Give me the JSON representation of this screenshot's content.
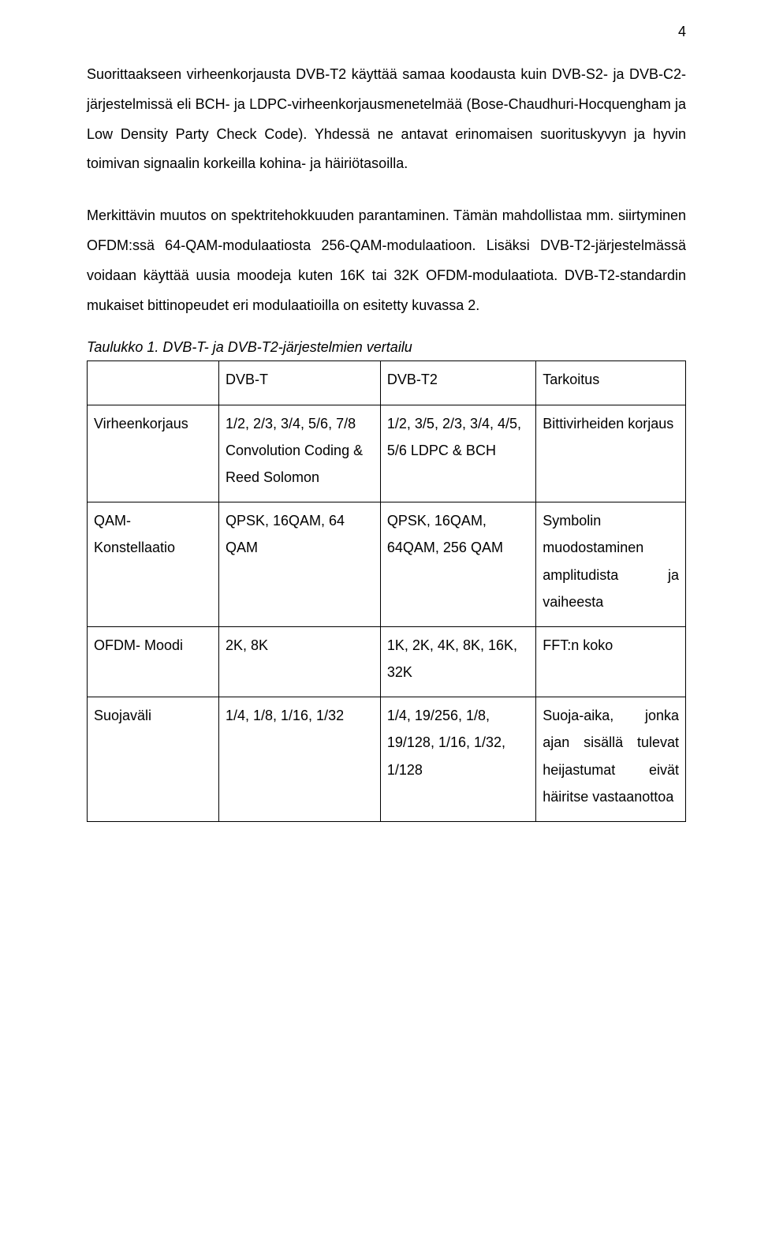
{
  "pageNumber": "4",
  "paragraphs": {
    "p1": "Suorittaakseen virheenkorjausta DVB-T2 käyttää samaa koodausta kuin DVB-S2- ja DVB-C2-järjestelmissä eli BCH- ja LDPC-virheenkorjausmenetelmää (Bose-Chaudhuri-Hocquengham ja Low Density Party Check Code). Yhdessä ne antavat erinomaisen suorituskyvyn ja hyvin toimivan signaalin korkeilla kohina- ja häiriötasoilla.",
    "p2": "Merkittävin muutos on spektritehokkuuden parantaminen. Tämän mahdollistaa mm. siirtyminen OFDM:ssä 64-QAM-modulaatiosta 256-QAM-modulaatioon. Lisäksi DVB-T2-järjestelmässä voidaan käyttää uusia moodeja kuten 16K tai 32K OFDM-modulaatiota. DVB-T2-standardin mukaiset bittinopeudet eri modulaatioilla on esitetty kuvassa 2."
  },
  "caption": "Taulukko 1. DVB-T- ja DVB-T2-järjestelmien vertailu",
  "table": {
    "header": {
      "c1": "",
      "c2": "DVB-T",
      "c3": "DVB-T2",
      "c4": "Tarkoitus"
    },
    "rows": [
      {
        "c1": "Virheenkorjaus",
        "c2": "1/2, 2/3, 3/4, 5/6, 7/8 Convolution Coding & Reed Solomon",
        "c3": "1/2, 3/5, 2/3, 3/4, 4/5, 5/6 LDPC & BCH",
        "c4": "Bittivirheiden korjaus"
      },
      {
        "c1": "QAM-Konstellaatio",
        "c2": "QPSK, 16QAM, 64 QAM",
        "c3": "QPSK, 16QAM, 64QAM, 256 QAM",
        "c4": "Symbolin muodostaminen amplitudista ja vaiheesta"
      },
      {
        "c1": "OFDM- Moodi",
        "c2": "2K, 8K",
        "c3": "1K, 2K, 4K, 8K, 16K, 32K",
        "c4": "FFT:n koko"
      },
      {
        "c1": "Suojaväli",
        "c2": "1/4, 1/8, 1/16, 1/32",
        "c3": "1/4, 19/256, 1/8, 19/128, 1/16, 1/32, 1/128",
        "c4": "Suoja-aika, jonka ajan sisällä tulevat heijastumat eivät häiritse vastaanottoa"
      }
    ]
  },
  "style": {
    "text_color": "#000000",
    "background_color": "#ffffff",
    "border_color": "#000000",
    "body_font_size_pt": 14,
    "line_height": 2.1
  }
}
